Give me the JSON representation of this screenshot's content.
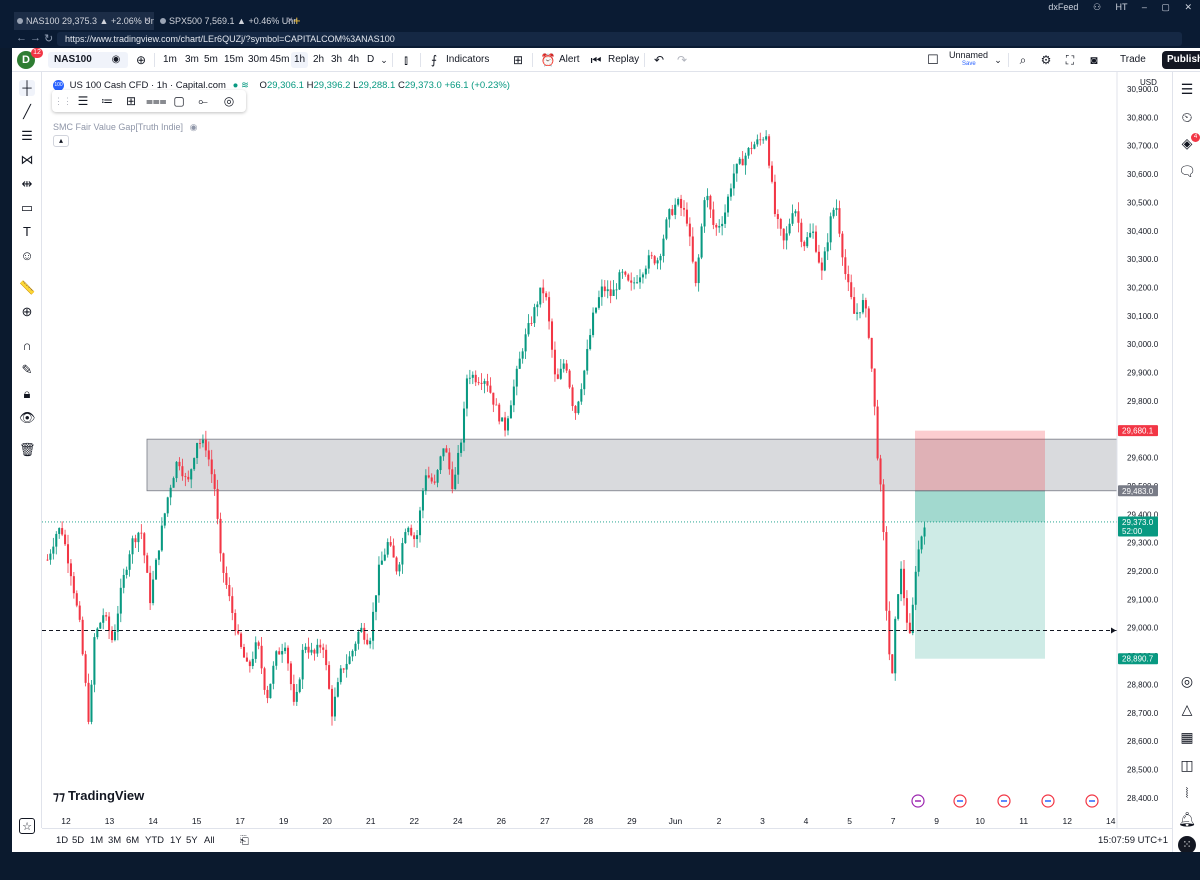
{
  "browser": {
    "tabs": [
      {
        "title": "NAS100 29,375.3 ▲ +2.06% Unna..."
      },
      {
        "title": "SPX500 7,569.1 ▲ +0.46% Unnamed"
      }
    ],
    "new_tab": "+",
    "url": "https://www.tradingview.com/chart/LEr6QUZj/?symbol=CAPITALCOM%3ANAS100",
    "extension_label": "dxFeed",
    "profile_initials": "HT"
  },
  "toolbar": {
    "avatar_letter": "D",
    "avatar_badge": "12",
    "symbol": "NAS100",
    "timeframes": [
      "1m",
      "3m",
      "5m",
      "15m",
      "30m",
      "45m",
      "1h",
      "2h",
      "3h",
      "4h",
      "D"
    ],
    "active_timeframe": "1h",
    "indicators_label": "Indicators",
    "alert_label": "Alert",
    "replay_label": "Replay",
    "layout_name": "Unnamed",
    "layout_save": "Save",
    "trade_label": "Trade",
    "publish_label": "Publish"
  },
  "legend": {
    "logo": "100",
    "title": "US 100 Cash CFD · 1h · Capital.com",
    "open": "29,306.1",
    "high": "29,396.2",
    "low": "29,288.1",
    "close": "29,373.0",
    "change": "+66.1 (+0.23%)",
    "indicator": "SMC Fair Value Gap[Truth Indie]",
    "o_label": "O",
    "h_label": "H",
    "l_label": "L",
    "c_label": "C"
  },
  "right_widgets": {
    "alerts_badge": "4"
  },
  "branding": {
    "logo_text": "TradingView"
  },
  "range_bar": {
    "ranges": [
      "1D",
      "5D",
      "1M",
      "3M",
      "6M",
      "YTD",
      "1Y",
      "5Y",
      "All"
    ],
    "clock": "15:07:59 UTC+1"
  },
  "chart_data": {
    "type": "candlestick",
    "currency": "USD",
    "y_ticks": [
      28400,
      28500,
      28600,
      28700,
      28800,
      28900,
      29000,
      29100,
      29200,
      29300,
      29400,
      29500,
      29600,
      29700,
      29800,
      29900,
      30000,
      30100,
      30200,
      30300,
      30400,
      30500,
      30600,
      30700,
      30800,
      30900
    ],
    "ylim": [
      28350,
      30960
    ],
    "x_ticks": [
      "12",
      "13",
      "14",
      "15",
      "17",
      "19",
      "20",
      "21",
      "22",
      "24",
      "26",
      "27",
      "28",
      "29",
      "Jun",
      "2",
      "3",
      "4",
      "5",
      "7",
      "9",
      "10",
      "11",
      "12",
      "14"
    ],
    "price_labels": [
      {
        "value": "29,680.1",
        "color": "#f23645"
      },
      {
        "value": "29,483.0",
        "color": "#787b86"
      },
      {
        "value": "29,373.0",
        "color": "#089981"
      },
      {
        "value": "52:00",
        "color": "#089981"
      },
      {
        "value": "28,890.7",
        "color": "#089981"
      }
    ],
    "zone": {
      "low": 29483,
      "high": 29665
    },
    "position": {
      "entry": 29483,
      "stop": 29695,
      "target": 28890.7
    },
    "horizontal_line": 28990,
    "current_price": 29373,
    "path": [
      [
        0,
        29240
      ],
      [
        2,
        29340
      ],
      [
        3,
        29350
      ],
      [
        5,
        29200
      ],
      [
        7,
        29000
      ],
      [
        9,
        28650
      ],
      [
        10,
        28960
      ],
      [
        12,
        29050
      ],
      [
        14,
        28950
      ],
      [
        16,
        29150
      ],
      [
        18,
        29300
      ],
      [
        20,
        29350
      ],
      [
        22,
        29100
      ],
      [
        24,
        29300
      ],
      [
        26,
        29480
      ],
      [
        28,
        29600
      ],
      [
        30,
        29500
      ],
      [
        32,
        29660
      ],
      [
        34,
        29640
      ],
      [
        36,
        29480
      ],
      [
        37,
        29250
      ],
      [
        39,
        29100
      ],
      [
        41,
        28950
      ],
      [
        43,
        28850
      ],
      [
        45,
        28950
      ],
      [
        47,
        28750
      ],
      [
        49,
        28900
      ],
      [
        51,
        28950
      ],
      [
        53,
        28700
      ],
      [
        55,
        28950
      ],
      [
        57,
        28900
      ],
      [
        59,
        28950
      ],
      [
        61,
        28700
      ],
      [
        63,
        28850
      ],
      [
        65,
        28900
      ],
      [
        67,
        29000
      ],
      [
        69,
        28950
      ],
      [
        71,
        29200
      ],
      [
        73,
        29300
      ],
      [
        75,
        29200
      ],
      [
        77,
        29380
      ],
      [
        79,
        29300
      ],
      [
        81,
        29550
      ],
      [
        83,
        29500
      ],
      [
        85,
        29650
      ],
      [
        87,
        29490
      ],
      [
        89,
        29700
      ],
      [
        90,
        29900
      ],
      [
        92,
        29880
      ],
      [
        94,
        29880
      ],
      [
        96,
        29780
      ],
      [
        98,
        29700
      ],
      [
        100,
        29850
      ],
      [
        102,
        30000
      ],
      [
        104,
        30100
      ],
      [
        106,
        30200
      ],
      [
        107,
        30150
      ],
      [
        109,
        29850
      ],
      [
        111,
        29950
      ],
      [
        113,
        29750
      ],
      [
        115,
        29900
      ],
      [
        117,
        30100
      ],
      [
        119,
        30200
      ],
      [
        121,
        30170
      ],
      [
        123,
        30250
      ],
      [
        125,
        30200
      ],
      [
        127,
        30250
      ],
      [
        129,
        30300
      ],
      [
        131,
        30300
      ],
      [
        133,
        30450
      ],
      [
        135,
        30500
      ],
      [
        137,
        30450
      ],
      [
        139,
        30200
      ],
      [
        141,
        30550
      ],
      [
        143,
        30400
      ],
      [
        145,
        30450
      ],
      [
        147,
        30600
      ],
      [
        149,
        30650
      ],
      [
        151,
        30700
      ],
      [
        153,
        30720
      ],
      [
        154,
        30750
      ],
      [
        155,
        30600
      ],
      [
        156,
        30450
      ],
      [
        158,
        30350
      ],
      [
        160,
        30500
      ],
      [
        162,
        30350
      ],
      [
        164,
        30400
      ],
      [
        166,
        30250
      ],
      [
        168,
        30450
      ],
      [
        169,
        30500
      ],
      [
        171,
        30250
      ],
      [
        173,
        30100
      ],
      [
        175,
        30150
      ],
      [
        176,
        30050
      ],
      [
        177,
        29850
      ],
      [
        178,
        29600
      ],
      [
        179,
        29400
      ],
      [
        180,
        29000
      ],
      [
        181,
        28800
      ],
      [
        182,
        29100
      ],
      [
        183,
        29200
      ],
      [
        184,
        29050
      ],
      [
        185,
        28950
      ],
      [
        186,
        29200
      ],
      [
        187,
        29300
      ],
      [
        188,
        29373
      ]
    ]
  }
}
